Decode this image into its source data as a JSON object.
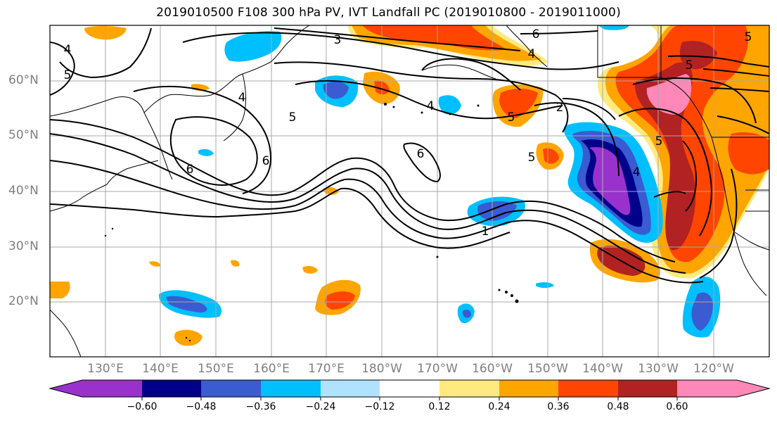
{
  "title": "2019010500 F108 300 hPa PV, IVT Landfall PC (2019010800 - 2019011000)",
  "lat_labels": [
    "60°N",
    "50°N",
    "40°N",
    "30°N",
    "20°N"
  ],
  "lon_labels": [
    "130°E",
    "140°E",
    "150°E",
    "160°E",
    "170°E",
    "180°W",
    "170°W",
    "160°W",
    "150°W",
    "140°W",
    "130°W",
    "120°W"
  ],
  "contour_labels": [
    "3",
    "6",
    "4",
    "5",
    "4",
    "5",
    "4",
    "5",
    "6",
    "6",
    "5",
    "2",
    "5",
    "4",
    "5",
    "1",
    "4",
    "6",
    "5"
  ],
  "colorbar": {
    "ticks": [
      "−0.60",
      "−0.48",
      "−0.36",
      "−0.24",
      "−0.12",
      "0.12",
      "0.24",
      "0.36",
      "0.48",
      "0.60"
    ],
    "colors": [
      "#9932CC",
      "#00008B",
      "#3A5BD1",
      "#00BFFF",
      "#B0E2FF",
      "#FFFFFF",
      "#FFEA80",
      "#FFA500",
      "#FF4500",
      "#B22222",
      "#FF88B8"
    ]
  }
}
